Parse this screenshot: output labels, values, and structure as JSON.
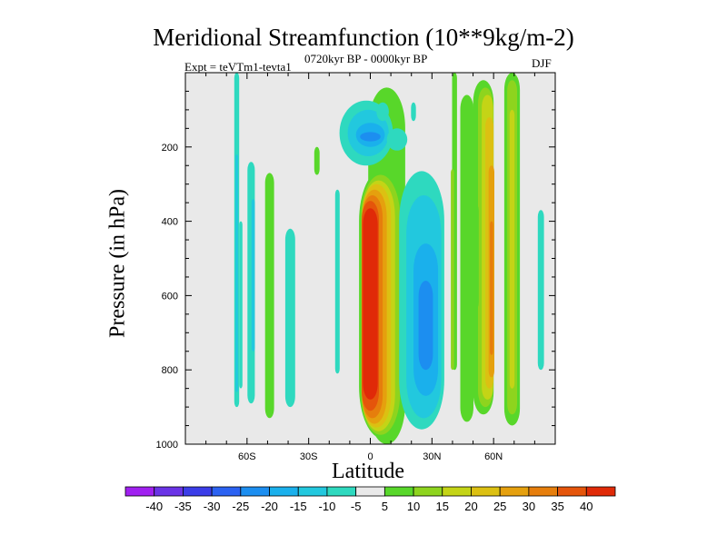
{
  "chart_data": {
    "type": "heatmap",
    "subtype": "latitude-pressure filled contour",
    "title": "Meridional Streamfunction (10**9kg/m-2)",
    "subtitle_left": "Expt = teVTm1-tevta1",
    "subtitle_center": "0720kyr BP - 0000kyr BP",
    "subtitle_right": "DJF",
    "xlabel": "Latitude",
    "ylabel": "Pressure (in hPa)",
    "x_ticks": [
      "60S",
      "30S",
      "0",
      "30N",
      "60N"
    ],
    "x_tick_values": [
      -60,
      -30,
      0,
      30,
      60
    ],
    "xlim": [
      -90,
      90
    ],
    "y_ticks": [
      "200",
      "400",
      "600",
      "800",
      "1000"
    ],
    "y_tick_values": [
      200,
      400,
      600,
      800,
      1000
    ],
    "ylim": [
      0,
      1000
    ],
    "colorbar": {
      "labels": [
        "-40",
        "-35",
        "-30",
        "-25",
        "-20",
        "-15",
        "-10",
        "-5",
        "5",
        "10",
        "15",
        "20",
        "25",
        "30",
        "35",
        "40"
      ],
      "colors": [
        "#a020f0",
        "#6a33e6",
        "#3b3de8",
        "#2b62f2",
        "#1c8ef0",
        "#1ab0ec",
        "#22c8de",
        "#2ed9bf",
        "#e9e9e9",
        "#58d72a",
        "#8ed41e",
        "#c4d416",
        "#dcc012",
        "#e5a00e",
        "#e67e0c",
        "#e5550b",
        "#e02a08"
      ]
    },
    "features": [
      {
        "name": "equatorial positive cell",
        "lat_range": [
          -8,
          12
        ],
        "p_range": [
          230,
          990
        ],
        "max_level": 40
      },
      {
        "name": "upper negative lobe",
        "lat_range": [
          -15,
          15
        ],
        "p_range": [
          60,
          240
        ],
        "min_level": -20
      },
      {
        "name": "northern subtropical negative cell",
        "lat_range": [
          15,
          38
        ],
        "p_range": [
          250,
          960
        ],
        "min_level": -20
      },
      {
        "name": "northern mid-latitude positive band",
        "lat_range": [
          40,
          75
        ],
        "p_range": [
          0,
          950
        ],
        "max_level": 30
      },
      {
        "name": "southern mid-latitude negative bands",
        "lat_range": [
          -70,
          -35
        ],
        "p_range": [
          0,
          900
        ],
        "min_level": -10
      },
      {
        "name": "southern mid-latitude positive band",
        "lat_range": [
          -55,
          -45
        ],
        "p_range": [
          270,
          930
        ],
        "max_level": 5
      }
    ]
  }
}
